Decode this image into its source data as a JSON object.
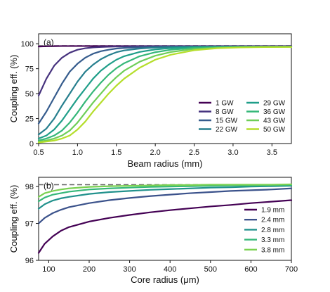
{
  "chart_data": [
    {
      "type": "line",
      "panel_label": "(a)",
      "xlabel": "Beam radius (mm)",
      "ylabel": "Coupling eff. (%)",
      "xlim": [
        0.5,
        3.75
      ],
      "ylim": [
        0,
        110
      ],
      "xticks": [
        0.5,
        1.0,
        1.5,
        2.0,
        2.5,
        3.0,
        3.5
      ],
      "xtick_labels": [
        "0.5",
        "1.0",
        "1.5",
        "2.0",
        "2.5",
        "3.0",
        "3.5"
      ],
      "yticks": [
        0,
        25,
        50,
        75,
        100
      ],
      "ytick_labels": [
        "0",
        "25",
        "50",
        "75",
        "100"
      ],
      "reference_line": 98,
      "legend_position": "lower-right",
      "legend_columns": 2,
      "x": [
        0.5,
        0.6,
        0.7,
        0.8,
        0.9,
        1.0,
        1.1,
        1.2,
        1.3,
        1.4,
        1.5,
        1.6,
        1.8,
        2.0,
        2.2,
        2.5,
        2.8,
        3.1,
        3.4,
        3.75
      ],
      "series": [
        {
          "name": "1 GW",
          "color": "#440154",
          "values": [
            97.2,
            97.5,
            97.6,
            97.7,
            97.7,
            97.7,
            97.7,
            97.7,
            97.7,
            97.7,
            97.7,
            97.7,
            97.7,
            97.7,
            97.7,
            97.7,
            97.7,
            97.7,
            97.7,
            97.7
          ]
        },
        {
          "name": "8 GW",
          "color": "#46327e",
          "values": [
            48,
            65,
            78,
            86,
            91,
            94,
            95.5,
            96.3,
            96.8,
            97,
            97.2,
            97.3,
            97.4,
            97.5,
            97.5,
            97.5,
            97.5,
            97.5,
            97.5,
            97.5
          ]
        },
        {
          "name": "15 GW",
          "color": "#365c8d",
          "values": [
            20,
            32,
            46,
            60,
            72,
            80,
            86,
            90,
            92.5,
            94,
            95.2,
            95.8,
            96.5,
            96.9,
            97.1,
            97.2,
            97.3,
            97.3,
            97.3,
            97.3
          ]
        },
        {
          "name": "22 GW",
          "color": "#277f8e",
          "values": [
            9,
            15,
            25,
            38,
            50,
            62,
            72,
            79,
            84.5,
            88.5,
            91.5,
            93.3,
            95.2,
            96.2,
            96.7,
            97,
            97.1,
            97.2,
            97.2,
            97.2
          ]
        },
        {
          "name": "29 GW",
          "color": "#1f9e89",
          "values": [
            5,
            8,
            14,
            23,
            34,
            45,
            55,
            65,
            73,
            79,
            84,
            87.5,
            91.8,
            94.3,
            95.6,
            96.5,
            96.9,
            97,
            97.1,
            97.1
          ]
        },
        {
          "name": "36 GW",
          "color": "#35b779",
          "values": [
            3,
            5,
            8,
            13,
            21,
            31,
            42,
            52,
            61,
            69,
            75.5,
            80.5,
            87.5,
            91.5,
            94,
            95.8,
            96.5,
            96.8,
            97,
            97
          ]
        },
        {
          "name": "43 GW",
          "color": "#6ece58",
          "values": [
            2,
            3,
            5,
            8,
            13,
            21,
            31,
            41,
            50,
            59,
            66.5,
            73,
            82,
            88,
            91.7,
            94.8,
            96,
            96.6,
            96.8,
            96.9
          ]
        },
        {
          "name": "50 GW",
          "color": "#b5de2b",
          "values": [
            1,
            2,
            3,
            5,
            8,
            14,
            22,
            32,
            41,
            50,
            58,
            65,
            76,
            84,
            89,
            93.5,
            95.5,
            96.3,
            96.7,
            96.8
          ]
        }
      ]
    },
    {
      "type": "line",
      "panel_label": "(b)",
      "xlabel": "Core radius (μm)",
      "ylabel": "Coupling eff. (%)",
      "xlim": [
        75,
        700
      ],
      "ylim": [
        96,
        98.25
      ],
      "xticks": [
        100,
        200,
        300,
        400,
        500,
        600,
        700
      ],
      "xtick_labels": [
        "100",
        "200",
        "300",
        "400",
        "500",
        "600",
        "700"
      ],
      "yticks": [
        96,
        97,
        98
      ],
      "ytick_labels": [
        "96",
        "97",
        "98"
      ],
      "reference_line": 98.05,
      "legend_position": "lower-right",
      "legend_columns": 1,
      "x": [
        75,
        90,
        110,
        130,
        150,
        200,
        250,
        300,
        350,
        400,
        450,
        500,
        550,
        600,
        650,
        700
      ],
      "series": [
        {
          "name": "1.9 mm",
          "color": "#440154",
          "values": [
            96.2,
            96.45,
            96.65,
            96.8,
            96.9,
            97.05,
            97.15,
            97.23,
            97.3,
            97.36,
            97.41,
            97.46,
            97.5,
            97.55,
            97.59,
            97.63
          ]
        },
        {
          "name": "2.4 mm",
          "color": "#3b528b",
          "values": [
            97.0,
            97.15,
            97.28,
            97.37,
            97.44,
            97.55,
            97.63,
            97.69,
            97.74,
            97.78,
            97.82,
            97.85,
            97.88,
            97.9,
            97.92,
            97.95
          ]
        },
        {
          "name": "2.8 mm",
          "color": "#21918c",
          "values": [
            97.4,
            97.52,
            97.62,
            97.68,
            97.72,
            97.8,
            97.85,
            97.88,
            97.91,
            97.93,
            97.95,
            97.97,
            97.98,
            98.0,
            98.01,
            98.02
          ]
        },
        {
          "name": "3.3 mm",
          "color": "#35b779",
          "values": [
            97.6,
            97.7,
            97.78,
            97.82,
            97.86,
            97.92,
            97.95,
            97.97,
            97.99,
            98.0,
            98.01,
            98.02,
            98.03,
            98.03,
            98.04,
            98.04
          ]
        },
        {
          "name": "3.8 mm",
          "color": "#7ad151",
          "values": [
            97.72,
            97.82,
            97.88,
            97.92,
            97.95,
            97.99,
            98.01,
            98.02,
            98.03,
            98.04,
            98.04,
            98.05,
            98.05,
            98.05,
            98.05,
            98.06
          ]
        }
      ]
    }
  ]
}
